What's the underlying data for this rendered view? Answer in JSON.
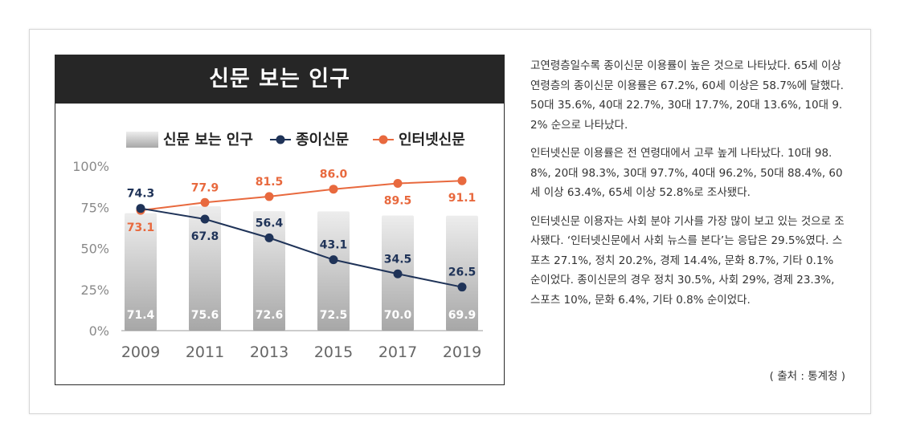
{
  "chart_title": "신문 보는 인구",
  "legend": {
    "bar": "신문 보는 인구",
    "paper": "종이신문",
    "internet": "인터넷신문"
  },
  "colors": {
    "title_bg": "#262626",
    "paper_line": "#1f3358",
    "internet_line": "#e8693e",
    "bar_top": "#ededed",
    "bar_bottom": "#a7a7a7"
  },
  "chart_data": {
    "type": "bar+line",
    "categories": [
      "2009",
      "2011",
      "2013",
      "2015",
      "2017",
      "2019"
    ],
    "series": [
      {
        "name": "신문 보는 인구",
        "kind": "bar",
        "values": [
          71.4,
          75.6,
          72.6,
          72.5,
          70.0,
          69.9
        ],
        "labels": [
          "71.4",
          "75.6",
          "72.6",
          "72.5",
          "70.0",
          "69.9"
        ]
      },
      {
        "name": "종이신문",
        "kind": "line",
        "values": [
          74.3,
          67.8,
          56.4,
          43.1,
          34.5,
          26.5
        ],
        "labels": [
          "74.3",
          "67.8",
          "56.4",
          "43.1",
          "34.5",
          "26.5"
        ]
      },
      {
        "name": "인터넷신문",
        "kind": "line",
        "values": [
          73.1,
          77.9,
          81.5,
          86.0,
          89.5,
          91.1
        ],
        "labels": [
          "73.1",
          "77.9",
          "81.5",
          "86.0",
          "89.5",
          "91.1"
        ]
      }
    ],
    "yticks": [
      "0%",
      "25%",
      "50%",
      "75%",
      "100%"
    ],
    "ylim": [
      0,
      100
    ],
    "legend_position": "top"
  },
  "paragraphs": [
    "고연령층일수록 종이신문 이용률이 높은 것으로 나타났다. 65세 이상 연령층의 종이신문 이용률은 67.2%, 60세 이상은 58.7%에 달했다. 50대 35.6%, 40대 22.7%, 30대 17.7%, 20대 13.6%, 10대 9.2% 순으로 나타났다.",
    "인터넷신문 이용률은 전 연령대에서 고루 높게 나타났다. 10대 98.8%, 20대 98.3%, 30대 97.7%, 40대 96.2%, 50대 88.4%, 60세 이상 63.4%, 65세 이상 52.8%로 조사됐다.",
    "인터넷신문 이용자는 사회 분야 기사를 가장 많이 보고 있는 것으로 조사됐다. ‘인터넷신문에서 사회 뉴스를 본다’는 응답은 29.5%였다. 스포츠 27.1%, 정치 20.2%, 경제 14.4%, 문화 8.7%, 기타 0.1% 순이었다. 종이신문의 경우 정치 30.5%, 사회 29%, 경제 23.3%, 스포츠 10%, 문화 6.4%, 기타 0.8% 순이었다."
  ],
  "source": "( 출처 : 통계청 )"
}
